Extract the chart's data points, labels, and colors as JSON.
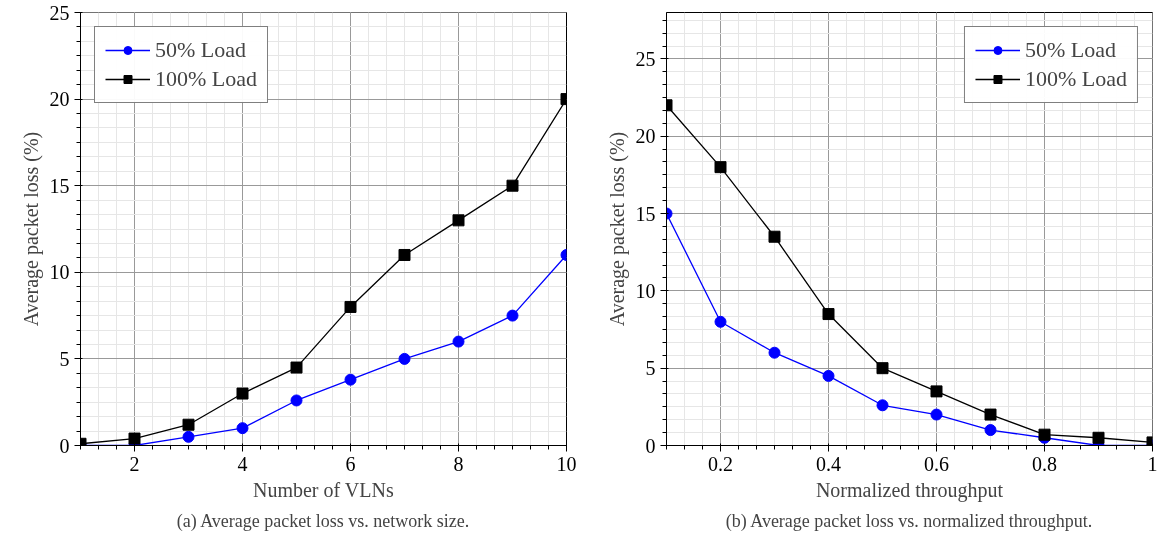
{
  "chart_data": [
    {
      "type": "line",
      "xlabel": "Number of VLNs",
      "ylabel": "Average packet loss (%)",
      "annotations": [
        "(a) Average packet loss vs. network size."
      ],
      "x": [
        1,
        2,
        3,
        4,
        5,
        6,
        7,
        8,
        9,
        10
      ],
      "xlim": [
        1,
        10
      ],
      "xticks": [
        2,
        4,
        6,
        8,
        10
      ],
      "ylim": [
        0,
        25
      ],
      "yticks": [
        0,
        5,
        10,
        15,
        20,
        25
      ],
      "grid": true,
      "legend": "top left",
      "line_style": "solid",
      "series": [
        {
          "name": "50% Load",
          "color": "#0000ff",
          "marker": "circle",
          "values": [
            0,
            0,
            0.5,
            1,
            2.6,
            3.8,
            5,
            6,
            7.5,
            11
          ]
        },
        {
          "name": "100% Load",
          "color": "#000000",
          "marker": "square",
          "values": [
            0.1,
            0.4,
            1.2,
            3,
            4.5,
            8,
            11,
            13,
            15,
            20
          ]
        }
      ]
    },
    {
      "type": "line",
      "xlabel": "Normalized throughput",
      "ylabel": "Average packet loss (%)",
      "annotations": [
        "(b) Average packet loss vs. normalized throughput."
      ],
      "x": [
        0.1,
        0.2,
        0.3,
        0.4,
        0.5,
        0.6,
        0.7,
        0.8,
        0.9,
        1
      ],
      "xlim": [
        0.1,
        1
      ],
      "xticks": [
        0.2,
        0.4,
        0.6,
        0.8,
        1
      ],
      "ylim": [
        0,
        28
      ],
      "yticks": [
        0,
        5,
        10,
        15,
        20,
        25
      ],
      "grid": true,
      "legend": "top right",
      "line_style": "solid",
      "series": [
        {
          "name": "50% Load",
          "color": "#0000ff",
          "marker": "circle",
          "values": [
            15,
            8,
            6,
            4.5,
            2.6,
            2,
            1,
            0.5,
            0,
            0
          ]
        },
        {
          "name": "100% Load",
          "color": "#000000",
          "marker": "square",
          "values": [
            22,
            18,
            13.5,
            8.5,
            5,
            3.5,
            2,
            0.7,
            0.5,
            0.2
          ]
        }
      ]
    }
  ]
}
